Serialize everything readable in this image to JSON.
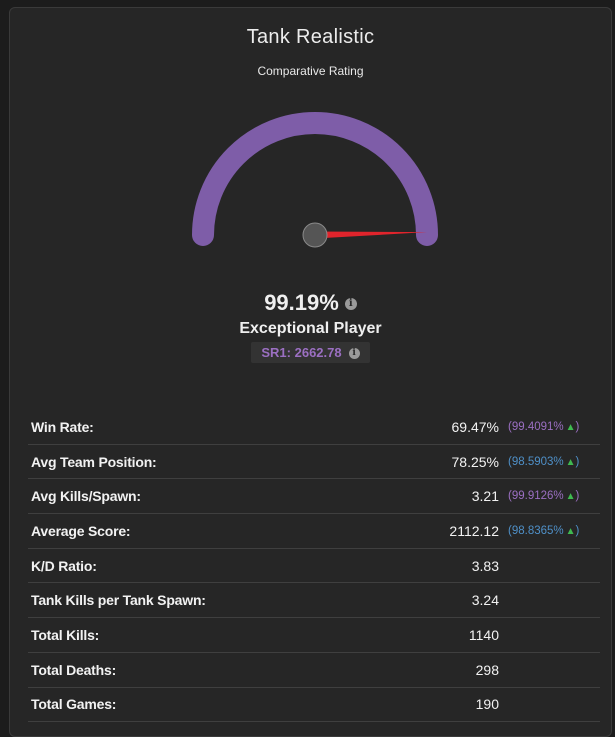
{
  "header": {
    "title": "Tank Realistic",
    "subtitle": "Comparative Rating"
  },
  "gauge": {
    "rating_percent": 99.19,
    "arc_color": "#7e5da8",
    "needle_color": "#e0242c",
    "hub_color": "#555555"
  },
  "rating": {
    "percent_label": "99.19%",
    "tier_label": "Exceptional Player",
    "sr_label": "SR1: 2662.78"
  },
  "colors": {
    "purple": "#9b6fc2",
    "blue": "#4f90c8",
    "up_arrow": "#3fb950"
  },
  "stats": [
    {
      "label": "Win Rate:",
      "value": "69.47%",
      "pct": "99.4091%",
      "pct_color": "purple",
      "arrow": "▲"
    },
    {
      "label": "Avg Team Position:",
      "value": "78.25%",
      "pct": "98.5903%",
      "pct_color": "blue",
      "arrow": "▲"
    },
    {
      "label": "Avg Kills/Spawn:",
      "value": "3.21",
      "pct": "99.9126%",
      "pct_color": "purple",
      "arrow": "▲"
    },
    {
      "label": "Average Score:",
      "value": "2112.12",
      "pct": "98.8365%",
      "pct_color": "blue",
      "arrow": "▲"
    },
    {
      "label": "K/D Ratio:",
      "value": "3.83"
    },
    {
      "label": "Tank Kills per Tank Spawn:",
      "value": "3.24"
    },
    {
      "label": "Total Kills:",
      "value": "1140"
    },
    {
      "label": "Total Deaths:",
      "value": "298"
    },
    {
      "label": "Total Games:",
      "value": "190"
    }
  ]
}
